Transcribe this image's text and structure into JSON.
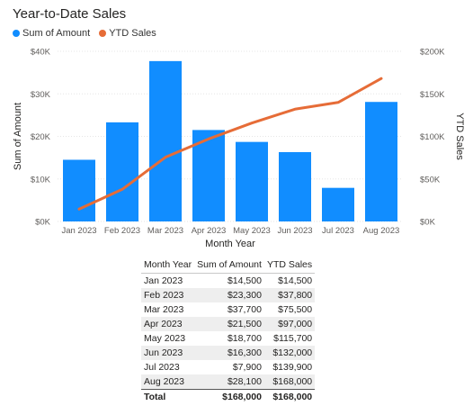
{
  "chart_data": {
    "type": "bar",
    "title": "Year-to-Date Sales",
    "categories": [
      "Jan 2023",
      "Feb 2023",
      "Mar 2023",
      "Apr 2023",
      "May 2023",
      "Jun 2023",
      "Jul 2023",
      "Aug 2023"
    ],
    "xlabel": "Month Year",
    "ylabel": "Sum of Amount",
    "y2label": "YTD Sales",
    "ylim": [
      0,
      40000
    ],
    "y2lim": [
      0,
      200000
    ],
    "yticks": [
      "$0K",
      "$10K",
      "$20K",
      "$30K",
      "$40K"
    ],
    "y2ticks": [
      "$0K",
      "$50K",
      "$100K",
      "$150K",
      "$200K"
    ],
    "grid": true,
    "legend_position": "top-left",
    "series": [
      {
        "name": "Sum of Amount",
        "kind": "bar",
        "axis": "left",
        "color": "#118DFF",
        "values": [
          14500,
          23300,
          37700,
          21500,
          18700,
          16300,
          7900,
          28100
        ]
      },
      {
        "name": "YTD Sales",
        "kind": "line",
        "axis": "right",
        "color": "#E66C37",
        "values": [
          14500,
          37800,
          75500,
          97000,
          115700,
          132000,
          139900,
          168000
        ]
      }
    ]
  },
  "table": {
    "headers": [
      "Month Year",
      "Sum of Amount",
      "YTD Sales"
    ],
    "rows": [
      [
        "Jan 2023",
        "$14,500",
        "$14,500"
      ],
      [
        "Feb 2023",
        "$23,300",
        "$37,800"
      ],
      [
        "Mar 2023",
        "$37,700",
        "$75,500"
      ],
      [
        "Apr 2023",
        "$21,500",
        "$97,000"
      ],
      [
        "May 2023",
        "$18,700",
        "$115,700"
      ],
      [
        "Jun 2023",
        "$16,300",
        "$132,000"
      ],
      [
        "Jul 2023",
        "$7,900",
        "$139,900"
      ],
      [
        "Aug 2023",
        "$28,100",
        "$168,000"
      ]
    ],
    "total": [
      "Total",
      "$168,000",
      "$168,000"
    ]
  }
}
